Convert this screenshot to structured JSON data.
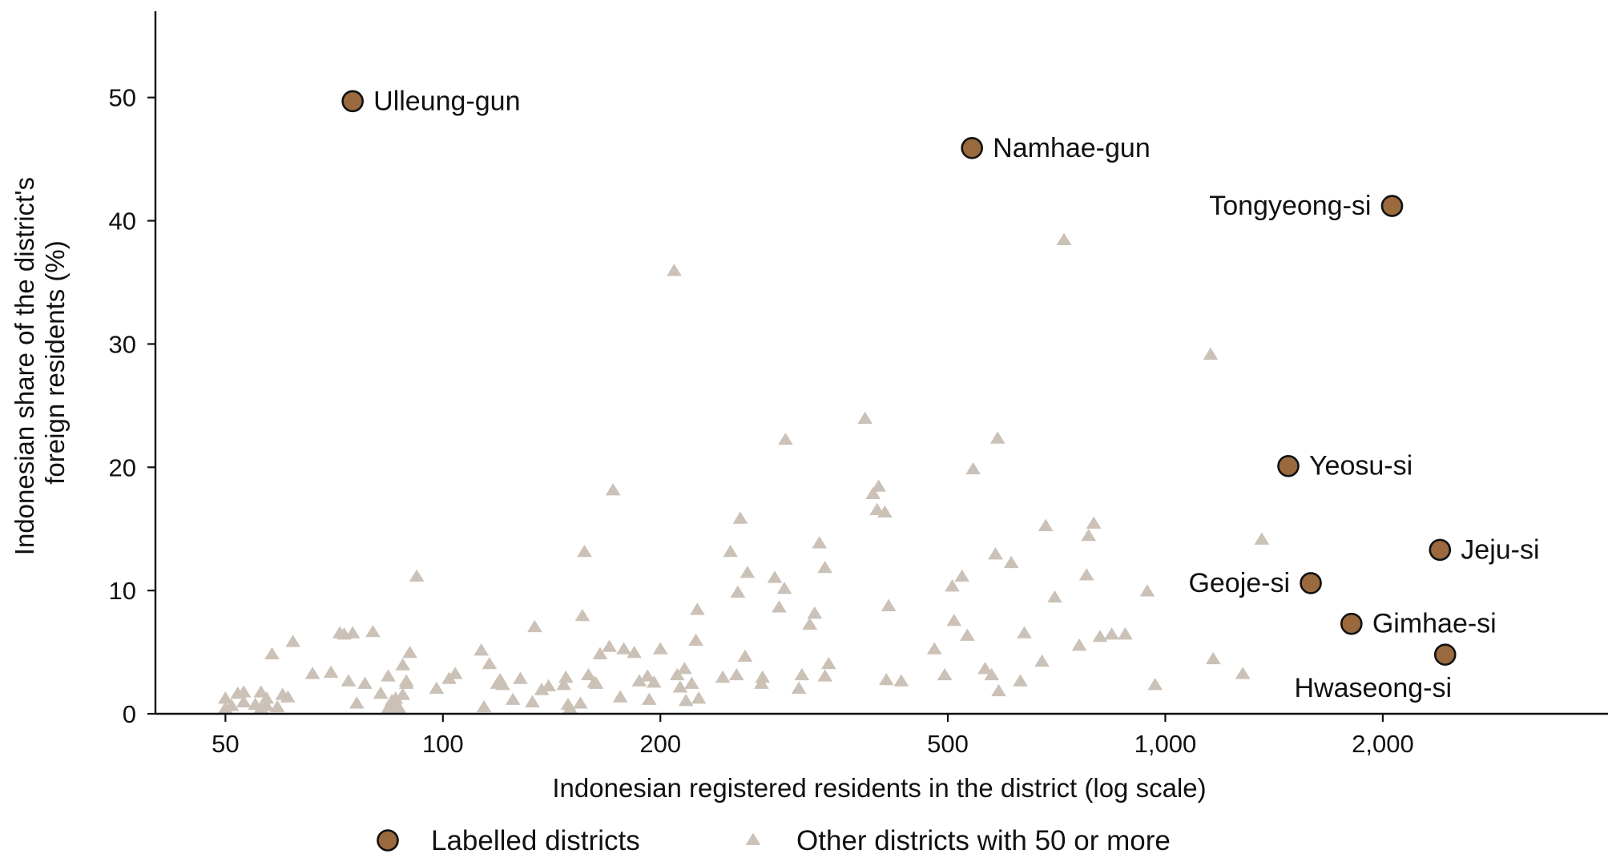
{
  "chart_data": {
    "type": "scatter",
    "xlabel": "Indonesian registered residents in the district (log scale)",
    "ylabel_lines": [
      "Indonesian share of the district's",
      "foreign residents (%)"
    ],
    "x_scale": "log",
    "xlim": [
      40,
      4100
    ],
    "ylim": [
      0,
      57
    ],
    "x_ticks": [
      {
        "value": 50,
        "label": "50"
      },
      {
        "value": 100,
        "label": "100"
      },
      {
        "value": 200,
        "label": "200"
      },
      {
        "value": 500,
        "label": "500"
      },
      {
        "value": 1000,
        "label": "1,000"
      },
      {
        "value": 2000,
        "label": "2,000"
      }
    ],
    "y_ticks": [
      {
        "value": 0,
        "label": "0"
      },
      {
        "value": 10,
        "label": "10"
      },
      {
        "value": 20,
        "label": "20"
      },
      {
        "value": 30,
        "label": "30"
      },
      {
        "value": 40,
        "label": "40"
      },
      {
        "value": 50,
        "label": "50"
      }
    ],
    "grid": false,
    "legend_position": "bottom",
    "legend": [
      {
        "key": "labelled",
        "label": "Labelled districts",
        "marker": "circle"
      },
      {
        "key": "other",
        "label": "Other districts with 50 or more",
        "marker": "triangle"
      }
    ],
    "colors": {
      "labelled_fill": "#9a6a3e",
      "labelled_stroke": "#111111",
      "other_fill": "#cbc1b7",
      "axis": "#111111"
    },
    "labelled_points": [
      {
        "name": "Ulleung-gun",
        "x": 75,
        "y": 49.7,
        "label_side": "right"
      },
      {
        "name": "Namhae-gun",
        "x": 540,
        "y": 45.9,
        "label_side": "right"
      },
      {
        "name": "Tongyeong-si",
        "x": 2060,
        "y": 41.2,
        "label_side": "left"
      },
      {
        "name": "Yeosu-si",
        "x": 1480,
        "y": 20.1,
        "label_side": "right"
      },
      {
        "name": "Jeju-si",
        "x": 2400,
        "y": 13.3,
        "label_side": "right"
      },
      {
        "name": "Geoje-si",
        "x": 1590,
        "y": 10.6,
        "label_side": "left"
      },
      {
        "name": "Gimhae-si",
        "x": 1810,
        "y": 7.3,
        "label_side": "right"
      },
      {
        "name": "Hwaseong-si",
        "x": 2440,
        "y": 4.8,
        "label_side": "below"
      }
    ],
    "other_points": [
      [
        50,
        1.2
      ],
      [
        50,
        0.4
      ],
      [
        51,
        0.6
      ],
      [
        52,
        1.6
      ],
      [
        53,
        1.7
      ],
      [
        53,
        0.9
      ],
      [
        55,
        0.7
      ],
      [
        56,
        1.7
      ],
      [
        56,
        0.4
      ],
      [
        57,
        1.2
      ],
      [
        57,
        0.6
      ],
      [
        58,
        4.8
      ],
      [
        59,
        0.5
      ],
      [
        60,
        1.5
      ],
      [
        61,
        1.3
      ],
      [
        62,
        5.8
      ],
      [
        66,
        3.2
      ],
      [
        70,
        3.3
      ],
      [
        72,
        6.5
      ],
      [
        73,
        6.4
      ],
      [
        74,
        2.6
      ],
      [
        75,
        6.5
      ],
      [
        76,
        0.8
      ],
      [
        78,
        2.4
      ],
      [
        80,
        6.6
      ],
      [
        82,
        1.6
      ],
      [
        84,
        3.0
      ],
      [
        84,
        0.4
      ],
      [
        85,
        1.0
      ],
      [
        86,
        0.6
      ],
      [
        86,
        1.2
      ],
      [
        87,
        0.4
      ],
      [
        88,
        3.9
      ],
      [
        88,
        1.5
      ],
      [
        89,
        2.4
      ],
      [
        89,
        2.6
      ],
      [
        90,
        4.9
      ],
      [
        92,
        11.1
      ],
      [
        98,
        2.0
      ],
      [
        102,
        2.8
      ],
      [
        104,
        3.2
      ],
      [
        113,
        5.1
      ],
      [
        114,
        0.5
      ],
      [
        116,
        4.0
      ],
      [
        119,
        2.4
      ],
      [
        120,
        2.7
      ],
      [
        121,
        2.3
      ],
      [
        125,
        1.1
      ],
      [
        128,
        2.8
      ],
      [
        133,
        0.9
      ],
      [
        134,
        7.0
      ],
      [
        137,
        1.9
      ],
      [
        140,
        2.2
      ],
      [
        147,
        2.3
      ],
      [
        148,
        2.9
      ],
      [
        149,
        0.7
      ],
      [
        150,
        0.4
      ],
      [
        155,
        0.8
      ],
      [
        156,
        7.9
      ],
      [
        157,
        13.1
      ],
      [
        159,
        3.1
      ],
      [
        162,
        2.5
      ],
      [
        163,
        2.4
      ],
      [
        165,
        4.8
      ],
      [
        170,
        5.4
      ],
      [
        172,
        18.1
      ],
      [
        176,
        1.3
      ],
      [
        178,
        5.2
      ],
      [
        184,
        4.9
      ],
      [
        187,
        2.6
      ],
      [
        192,
        3.0
      ],
      [
        193,
        1.1
      ],
      [
        196,
        2.5
      ],
      [
        200,
        5.2
      ],
      [
        209,
        35.9
      ],
      [
        211,
        3.1
      ],
      [
        213,
        2.1
      ],
      [
        216,
        3.6
      ],
      [
        217,
        1.0
      ],
      [
        221,
        2.4
      ],
      [
        224,
        5.9
      ],
      [
        225,
        8.4
      ],
      [
        226,
        1.2
      ],
      [
        244,
        2.9
      ],
      [
        250,
        13.1
      ],
      [
        255,
        3.1
      ],
      [
        256,
        9.8
      ],
      [
        258,
        15.8
      ],
      [
        262,
        4.6
      ],
      [
        264,
        11.4
      ],
      [
        276,
        2.4
      ],
      [
        277,
        2.9
      ],
      [
        288,
        11.0
      ],
      [
        292,
        8.6
      ],
      [
        297,
        10.1
      ],
      [
        298,
        22.2
      ],
      [
        311,
        2.0
      ],
      [
        314,
        3.1
      ],
      [
        322,
        7.2
      ],
      [
        327,
        8.1
      ],
      [
        332,
        13.8
      ],
      [
        338,
        11.8
      ],
      [
        338,
        3.0
      ],
      [
        342,
        4.0
      ],
      [
        384,
        23.9
      ],
      [
        394,
        17.8
      ],
      [
        399,
        16.5
      ],
      [
        401,
        18.4
      ],
      [
        409,
        16.3
      ],
      [
        411,
        2.7
      ],
      [
        414,
        8.7
      ],
      [
        431,
        2.6
      ],
      [
        479,
        5.2
      ],
      [
        495,
        3.1
      ],
      [
        507,
        10.3
      ],
      [
        510,
        7.5
      ],
      [
        523,
        11.1
      ],
      [
        532,
        6.3
      ],
      [
        542,
        19.8
      ],
      [
        563,
        3.6
      ],
      [
        575,
        3.1
      ],
      [
        582,
        12.9
      ],
      [
        586,
        22.3
      ],
      [
        588,
        1.8
      ],
      [
        612,
        12.2
      ],
      [
        630,
        2.6
      ],
      [
        638,
        6.5
      ],
      [
        675,
        4.2
      ],
      [
        683,
        15.2
      ],
      [
        703,
        9.4
      ],
      [
        724,
        38.4
      ],
      [
        760,
        5.5
      ],
      [
        778,
        11.2
      ],
      [
        783,
        14.4
      ],
      [
        796,
        15.4
      ],
      [
        812,
        6.2
      ],
      [
        843,
        6.4
      ],
      [
        880,
        6.4
      ],
      [
        944,
        9.9
      ],
      [
        968,
        2.3
      ],
      [
        1155,
        29.1
      ],
      [
        1165,
        4.4
      ],
      [
        1280,
        3.2
      ],
      [
        1360,
        14.1
      ]
    ]
  }
}
